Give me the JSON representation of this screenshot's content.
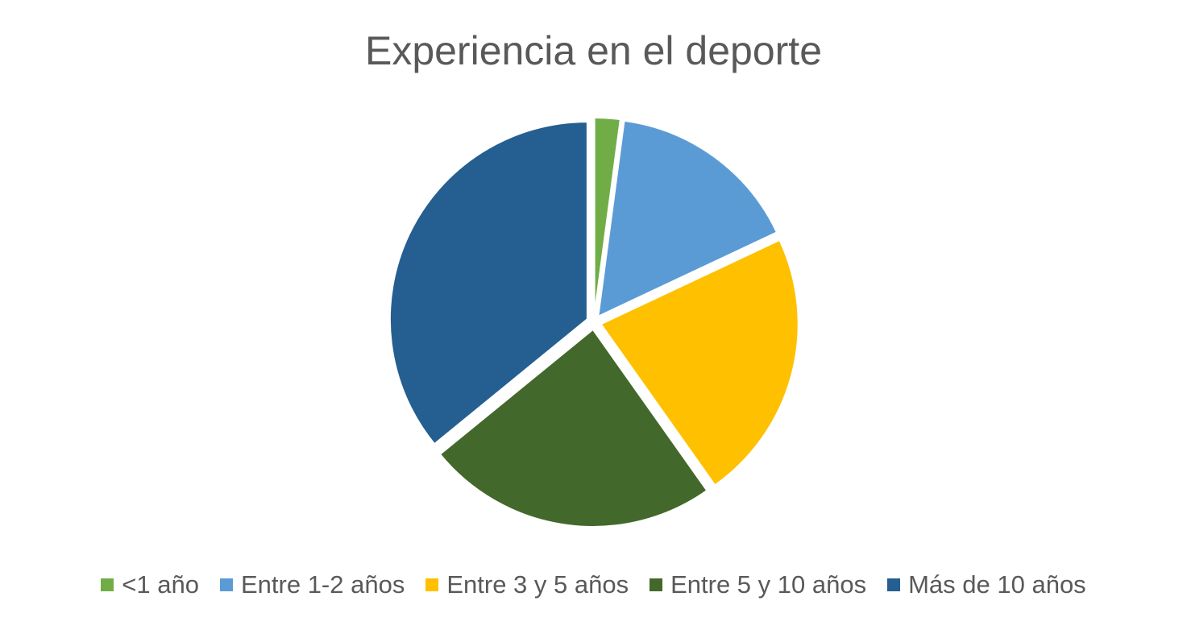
{
  "chart_data": {
    "type": "pie",
    "title": "Experiencia en el deporte",
    "categories": [
      "<1 año",
      "Entre 1-2 años",
      "Entre 3 y 5 años",
      "Entre 5 y 10 años",
      "Más de 10 años"
    ],
    "values": [
      2.1,
      15.9,
      22.2,
      23.9,
      35.9
    ],
    "colors": [
      "#70AD47",
      "#5B9BD5",
      "#FFC000",
      "#43682B",
      "#255E91"
    ],
    "legend_position": "bottom",
    "exploded": true,
    "start_angle": "top, clockwise"
  }
}
